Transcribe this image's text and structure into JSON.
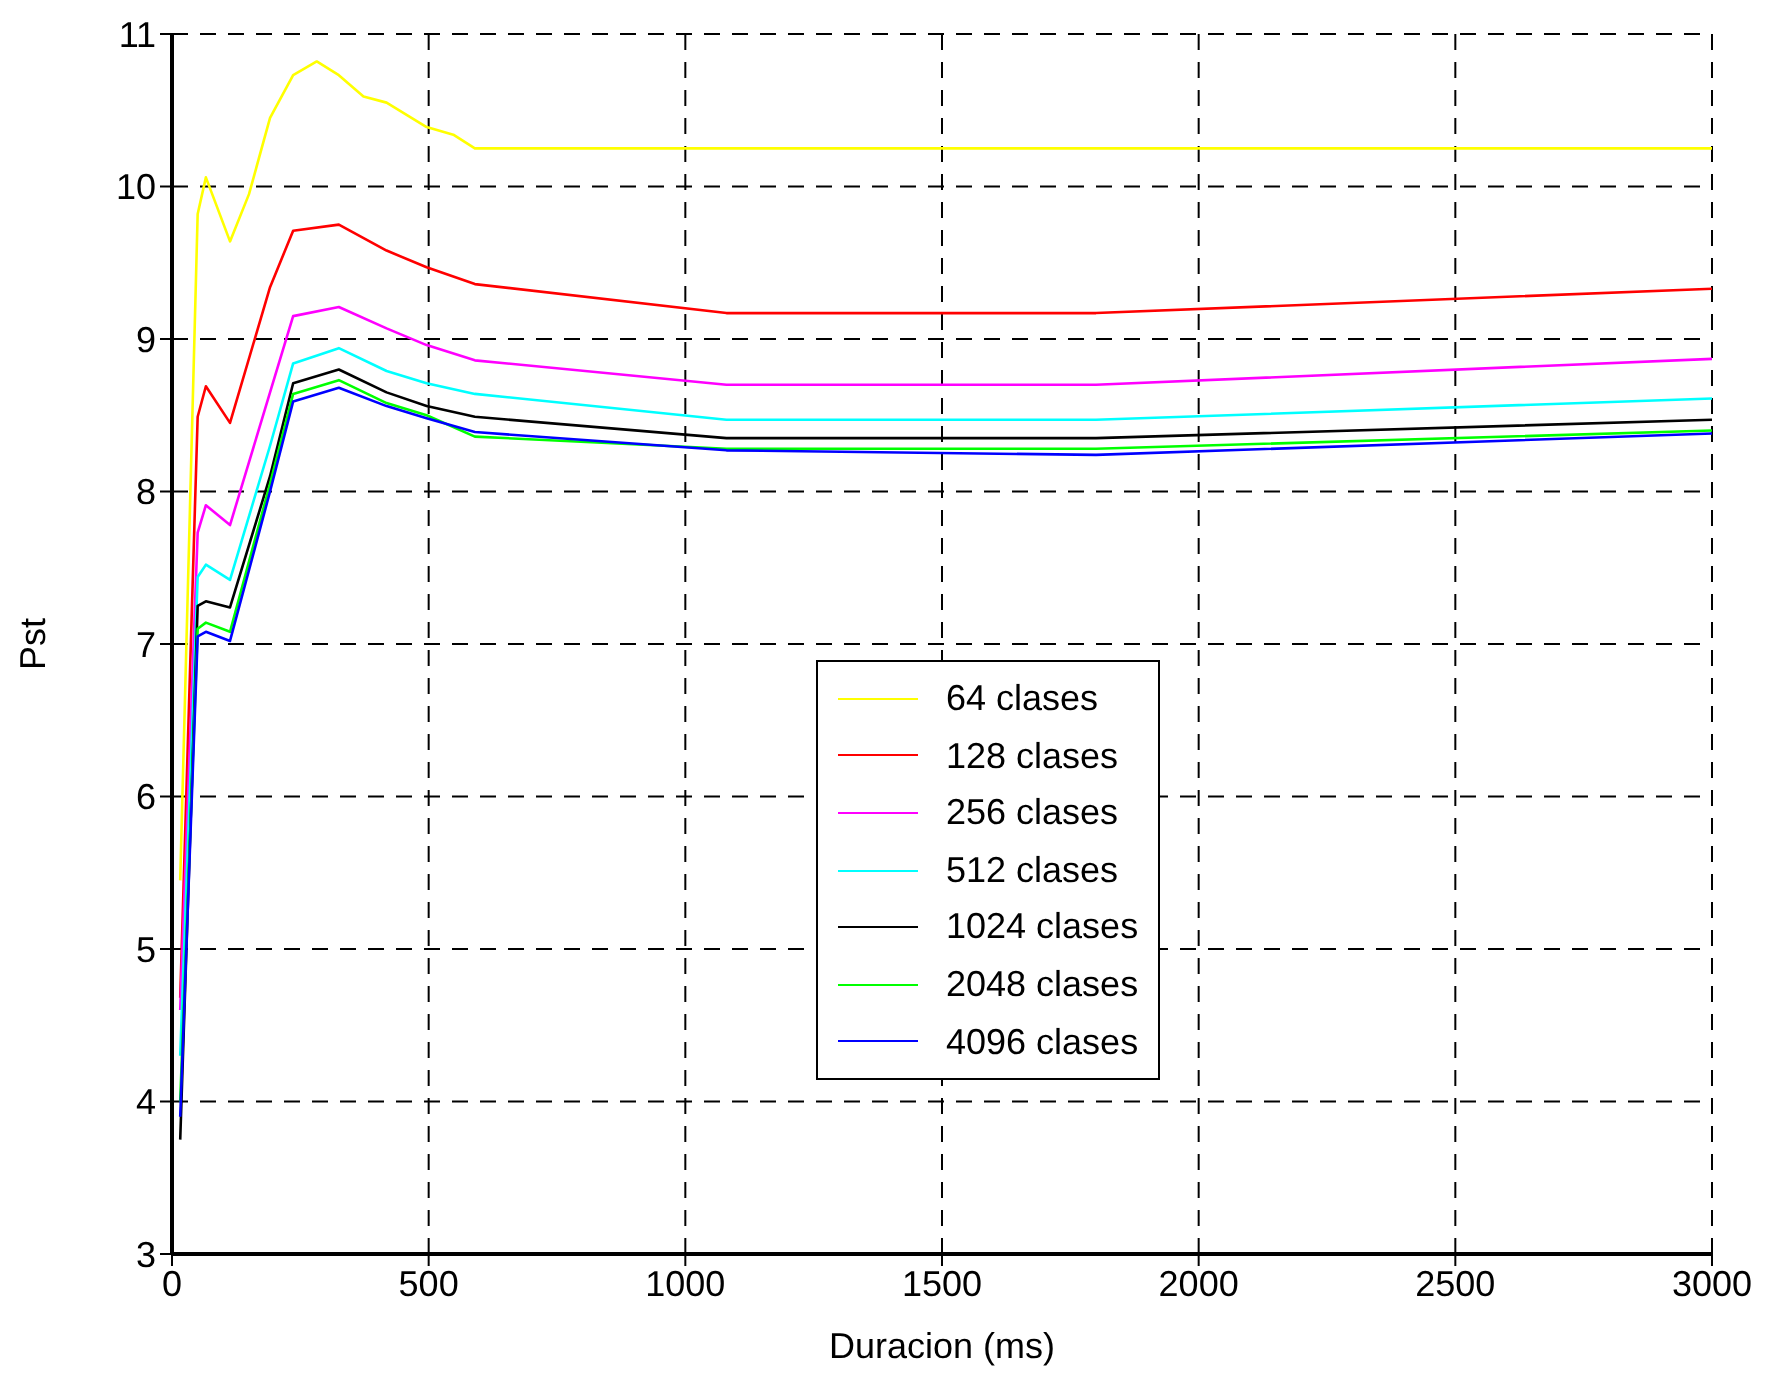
{
  "chart_data": {
    "type": "line",
    "xlabel": "Duracion (ms)",
    "ylabel": "Pst",
    "xlim": [
      0,
      3000
    ],
    "ylim": [
      3,
      11
    ],
    "xticks": [
      0,
      500,
      1000,
      1500,
      2000,
      2500,
      3000
    ],
    "yticks": [
      3,
      4,
      5,
      6,
      7,
      8,
      9,
      10,
      11
    ],
    "grid": true,
    "line_style": "solid",
    "marker": "none",
    "legend": "bottom",
    "series": [
      {
        "name": "64 clases",
        "color": "#ffff00",
        "x": [
          16,
          50,
          66,
          113,
          150,
          191,
          236,
          282,
          325,
          373,
          418,
          496,
          548,
          590,
          1080,
          1800,
          3000
        ],
        "values": [
          5.45,
          9.82,
          10.06,
          9.64,
          9.95,
          10.45,
          10.73,
          10.82,
          10.73,
          10.59,
          10.55,
          10.39,
          10.34,
          10.25,
          10.25,
          10.25,
          10.25
        ]
      },
      {
        "name": "128 clases",
        "color": "#ff0000",
        "x": [
          16,
          50,
          66,
          113,
          191,
          236,
          325,
          418,
          496,
          590,
          1080,
          1800,
          3000
        ],
        "values": [
          4.68,
          8.49,
          8.69,
          8.45,
          9.34,
          9.71,
          9.75,
          9.58,
          9.47,
          9.36,
          9.17,
          9.17,
          9.33
        ]
      },
      {
        "name": "256 clases",
        "color": "#ff00ff",
        "x": [
          16,
          50,
          66,
          113,
          191,
          236,
          325,
          418,
          496,
          590,
          1080,
          1800,
          3000
        ],
        "values": [
          4.6,
          7.73,
          7.91,
          7.78,
          8.65,
          9.15,
          9.21,
          9.07,
          8.96,
          8.86,
          8.7,
          8.7,
          8.87
        ]
      },
      {
        "name": "512 clases",
        "color": "#00ffff",
        "x": [
          16,
          50,
          66,
          113,
          191,
          236,
          325,
          418,
          496,
          590,
          1080,
          1800,
          3000
        ],
        "values": [
          4.3,
          7.44,
          7.52,
          7.42,
          8.3,
          8.84,
          8.94,
          8.79,
          8.71,
          8.64,
          8.47,
          8.47,
          8.61
        ]
      },
      {
        "name": "1024 clases",
        "color": "#000000",
        "x": [
          16,
          50,
          66,
          113,
          191,
          236,
          325,
          418,
          496,
          590,
          1080,
          1800,
          3000
        ],
        "values": [
          3.75,
          7.25,
          7.28,
          7.24,
          8.1,
          8.71,
          8.8,
          8.65,
          8.56,
          8.49,
          8.35,
          8.35,
          8.47
        ]
      },
      {
        "name": "2048 clases",
        "color": "#00ff00",
        "x": [
          16,
          50,
          66,
          113,
          191,
          236,
          325,
          418,
          496,
          590,
          1080,
          1800,
          3000
        ],
        "values": [
          4.0,
          7.1,
          7.14,
          7.08,
          8.05,
          8.64,
          8.73,
          8.58,
          8.5,
          8.36,
          8.28,
          8.28,
          8.4
        ]
      },
      {
        "name": "4096 clases",
        "color": "#0000ff",
        "x": [
          16,
          50,
          66,
          113,
          191,
          236,
          325,
          418,
          496,
          590,
          1080,
          1800,
          3000
        ],
        "values": [
          3.9,
          7.05,
          7.08,
          7.02,
          8.0,
          8.59,
          8.68,
          8.56,
          8.48,
          8.39,
          8.27,
          8.24,
          8.38
        ]
      }
    ]
  }
}
